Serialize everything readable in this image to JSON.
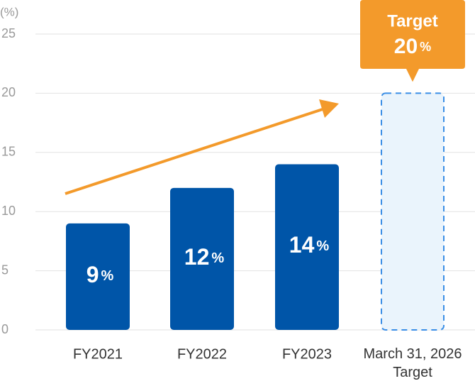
{
  "chart_data": {
    "type": "bar",
    "y_unit": "(%)",
    "categories": [
      "FY2021",
      "FY2022",
      "FY2023",
      "March 31, 2026\nTarget"
    ],
    "values": [
      9,
      12,
      14,
      20
    ],
    "value_labels": [
      "9%",
      "12%",
      "14%",
      "20%"
    ],
    "bar_styles": [
      "solid",
      "solid",
      "solid",
      "dashed"
    ],
    "color": "#0055a8",
    "target_fill": "#eaf4fc",
    "target_stroke": "#3a8ee6",
    "callout_title": "Target",
    "callout_color": "#f39a2b",
    "arrow_color": "#f39a2b",
    "ylim": [
      0,
      25
    ],
    "yticks": [
      0,
      5,
      10,
      15,
      20,
      25
    ],
    "grid": true
  }
}
